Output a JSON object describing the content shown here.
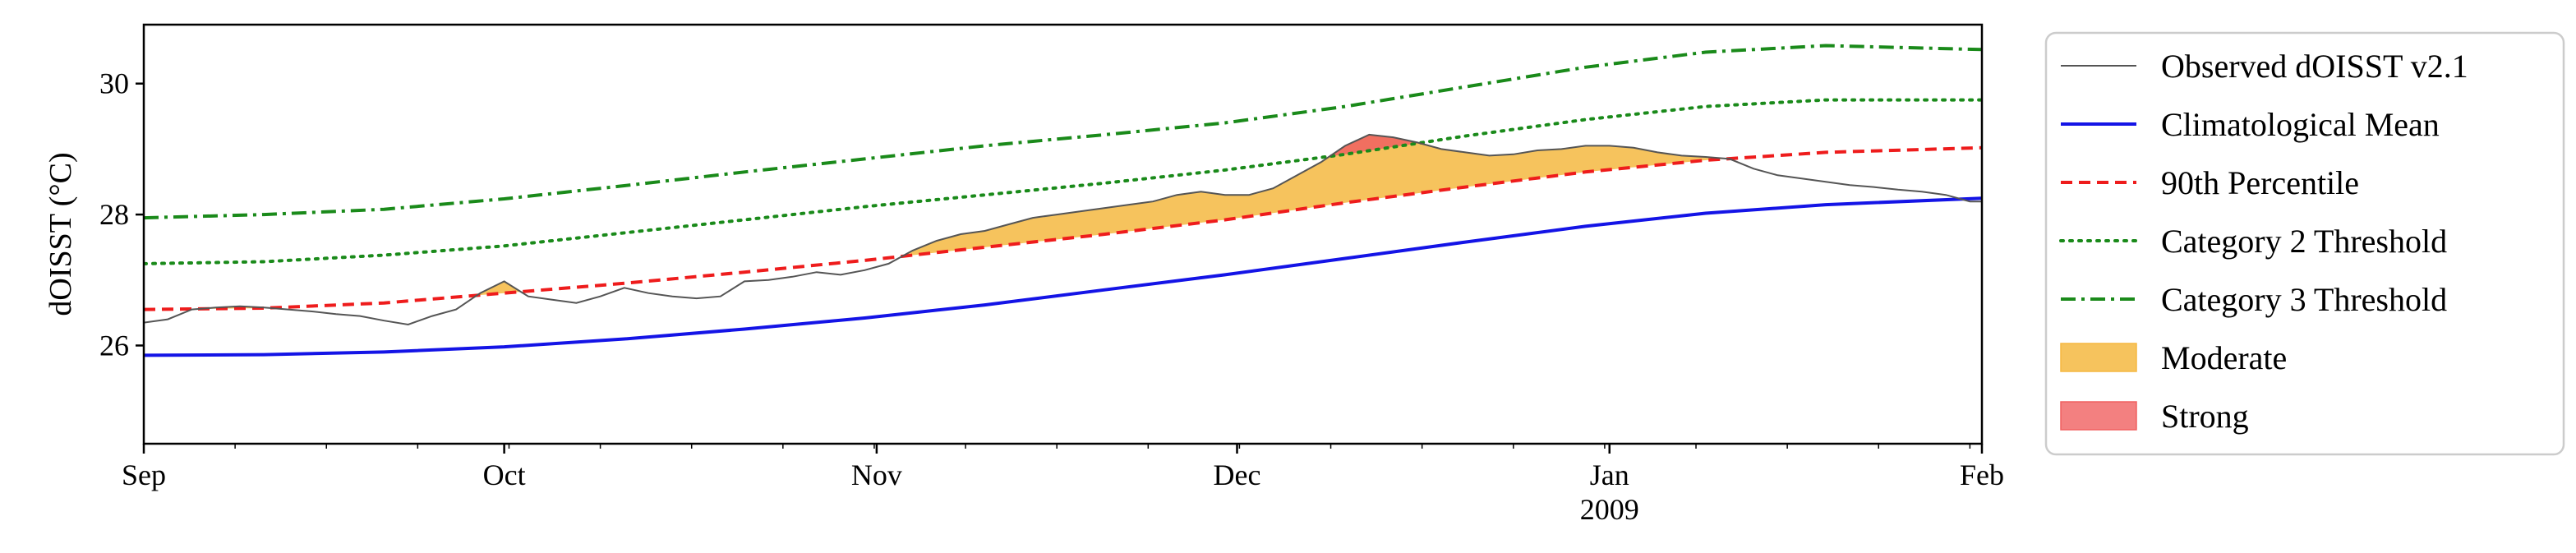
{
  "chart_data": {
    "type": "line",
    "title": "",
    "xlabel": "",
    "ylabel": "dOISST (°C)",
    "x_ticks": [
      "Sep",
      "Oct",
      "Nov",
      "Dec",
      "Jan",
      "Feb"
    ],
    "x_tick_days": [
      0,
      30,
      61,
      91,
      122,
      153
    ],
    "x_year_label": "2009",
    "x_range_days": [
      0,
      153
    ],
    "x_origin_date": "2008-09-01",
    "ylim": [
      24.5,
      30.9
    ],
    "y_ticks": [
      26,
      28,
      30
    ],
    "grid": false,
    "legend_position": "outside-right",
    "series": [
      {
        "name": "Observed dOISST v2.1",
        "color": "#555555",
        "style": "solid",
        "points": [
          [
            0,
            26.35
          ],
          [
            2,
            26.4
          ],
          [
            4,
            26.55
          ],
          [
            6,
            26.58
          ],
          [
            8,
            26.6
          ],
          [
            10,
            26.58
          ],
          [
            12,
            26.55
          ],
          [
            14,
            26.52
          ],
          [
            16,
            26.48
          ],
          [
            18,
            26.45
          ],
          [
            20,
            26.38
          ],
          [
            22,
            26.32
          ],
          [
            24,
            26.45
          ],
          [
            26,
            26.55
          ],
          [
            28,
            26.8
          ],
          [
            30,
            26.98
          ],
          [
            32,
            26.75
          ],
          [
            34,
            26.7
          ],
          [
            36,
            26.65
          ],
          [
            38,
            26.75
          ],
          [
            40,
            26.88
          ],
          [
            42,
            26.8
          ],
          [
            44,
            26.75
          ],
          [
            46,
            26.72
          ],
          [
            48,
            26.75
          ],
          [
            50,
            26.98
          ],
          [
            52,
            27.0
          ],
          [
            54,
            27.05
          ],
          [
            56,
            27.12
          ],
          [
            58,
            27.08
          ],
          [
            60,
            27.15
          ],
          [
            62,
            27.25
          ],
          [
            64,
            27.45
          ],
          [
            66,
            27.6
          ],
          [
            68,
            27.7
          ],
          [
            70,
            27.75
          ],
          [
            72,
            27.85
          ],
          [
            74,
            27.95
          ],
          [
            76,
            28.0
          ],
          [
            78,
            28.05
          ],
          [
            80,
            28.1
          ],
          [
            82,
            28.15
          ],
          [
            84,
            28.2
          ],
          [
            86,
            28.3
          ],
          [
            88,
            28.35
          ],
          [
            90,
            28.3
          ],
          [
            92,
            28.3
          ],
          [
            94,
            28.4
          ],
          [
            96,
            28.6
          ],
          [
            98,
            28.8
          ],
          [
            100,
            29.05
          ],
          [
            102,
            29.22
          ],
          [
            104,
            29.18
          ],
          [
            106,
            29.1
          ],
          [
            108,
            29.0
          ],
          [
            110,
            28.95
          ],
          [
            112,
            28.9
          ],
          [
            114,
            28.92
          ],
          [
            116,
            28.98
          ],
          [
            118,
            29.0
          ],
          [
            120,
            29.05
          ],
          [
            122,
            29.05
          ],
          [
            124,
            29.02
          ],
          [
            126,
            28.95
          ],
          [
            128,
            28.9
          ],
          [
            130,
            28.88
          ],
          [
            132,
            28.85
          ],
          [
            134,
            28.7
          ],
          [
            136,
            28.6
          ],
          [
            138,
            28.55
          ],
          [
            140,
            28.5
          ],
          [
            142,
            28.45
          ],
          [
            144,
            28.42
          ],
          [
            146,
            28.38
          ],
          [
            148,
            28.35
          ],
          [
            150,
            28.3
          ],
          [
            152,
            28.2
          ],
          [
            153,
            28.2
          ]
        ]
      },
      {
        "name": "Climatological Mean",
        "color": "#1414e6",
        "style": "solid",
        "points": [
          [
            0,
            25.85
          ],
          [
            10,
            25.86
          ],
          [
            20,
            25.9
          ],
          [
            30,
            25.98
          ],
          [
            40,
            26.1
          ],
          [
            50,
            26.25
          ],
          [
            60,
            26.42
          ],
          [
            70,
            26.62
          ],
          [
            80,
            26.85
          ],
          [
            90,
            27.08
          ],
          [
            100,
            27.33
          ],
          [
            110,
            27.58
          ],
          [
            120,
            27.82
          ],
          [
            130,
            28.02
          ],
          [
            140,
            28.15
          ],
          [
            153,
            28.25
          ]
        ]
      },
      {
        "name": "90th Percentile",
        "color": "#ee1c1c",
        "style": "dashed",
        "points": [
          [
            0,
            26.55
          ],
          [
            10,
            26.57
          ],
          [
            20,
            26.65
          ],
          [
            30,
            26.8
          ],
          [
            40,
            26.95
          ],
          [
            50,
            27.12
          ],
          [
            60,
            27.3
          ],
          [
            70,
            27.5
          ],
          [
            80,
            27.7
          ],
          [
            90,
            27.92
          ],
          [
            100,
            28.18
          ],
          [
            110,
            28.42
          ],
          [
            120,
            28.65
          ],
          [
            130,
            28.83
          ],
          [
            140,
            28.95
          ],
          [
            153,
            29.02
          ]
        ]
      },
      {
        "name": "Category 2 Threshold",
        "color": "#1a8a1a",
        "style": "dotted",
        "points": [
          [
            0,
            27.25
          ],
          [
            10,
            27.28
          ],
          [
            20,
            27.38
          ],
          [
            30,
            27.52
          ],
          [
            40,
            27.72
          ],
          [
            50,
            27.92
          ],
          [
            60,
            28.12
          ],
          [
            70,
            28.3
          ],
          [
            80,
            28.48
          ],
          [
            90,
            28.68
          ],
          [
            100,
            28.92
          ],
          [
            110,
            29.2
          ],
          [
            120,
            29.45
          ],
          [
            130,
            29.65
          ],
          [
            140,
            29.75
          ],
          [
            153,
            29.75
          ]
        ]
      },
      {
        "name": "Category 3 Threshold",
        "color": "#1a8a1a",
        "style": "dashdot",
        "points": [
          [
            0,
            27.95
          ],
          [
            10,
            28.0
          ],
          [
            20,
            28.08
          ],
          [
            30,
            28.24
          ],
          [
            40,
            28.44
          ],
          [
            50,
            28.65
          ],
          [
            60,
            28.85
          ],
          [
            70,
            29.05
          ],
          [
            80,
            29.22
          ],
          [
            90,
            29.4
          ],
          [
            100,
            29.65
          ],
          [
            110,
            29.95
          ],
          [
            120,
            30.25
          ],
          [
            130,
            30.48
          ],
          [
            140,
            30.58
          ],
          [
            153,
            30.52
          ]
        ]
      }
    ],
    "fills": [
      {
        "name": "Moderate",
        "color": "#f5b841",
        "between": [
          "Observed dOISST v2.1",
          "90th Percentile"
        ]
      },
      {
        "name": "Strong",
        "color": "#f06060",
        "between": [
          "Observed dOISST v2.1",
          "Category 2 Threshold"
        ]
      }
    ],
    "legend": [
      {
        "label": "Observed dOISST v2.1",
        "kind": "line",
        "color": "#555555",
        "style": "solid"
      },
      {
        "label": "Climatological Mean",
        "kind": "line",
        "color": "#1414e6",
        "style": "solid"
      },
      {
        "label": "90th Percentile",
        "kind": "line",
        "color": "#ee1c1c",
        "style": "dashed"
      },
      {
        "label": "Category 2 Threshold",
        "kind": "line",
        "color": "#1a8a1a",
        "style": "dotted"
      },
      {
        "label": "Category 3 Threshold",
        "kind": "line",
        "color": "#1a8a1a",
        "style": "dashdot"
      },
      {
        "label": "Moderate",
        "kind": "patch",
        "color": "#f5b841"
      },
      {
        "label": "Strong",
        "kind": "patch",
        "color": "#f06060"
      }
    ]
  }
}
